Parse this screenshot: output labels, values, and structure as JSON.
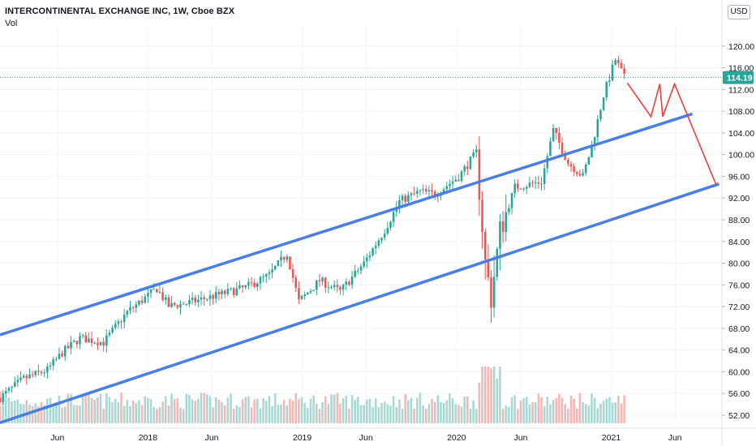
{
  "header": {
    "title": "INTERCONTINENTAL EXCHANGE INC, 1W, Cboe BZX",
    "volume_label": "Vol",
    "currency_button": "USD"
  },
  "colors": {
    "up": "#26a69a",
    "down": "#ef5350",
    "channel": "#4a7ee0",
    "projection": "#ef3b3b",
    "price_label_bg": "#26a69a",
    "grid": "#f0f3fa",
    "axis_text": "#131722"
  },
  "chart_data": {
    "type": "candlestick",
    "title": "INTERCONTINENTAL EXCHANGE INC, 1W, Cboe BZX",
    "interval": "1W",
    "currency": "USD",
    "x_tick_labels": [
      "Jun",
      "2018",
      "Jun",
      "2019",
      "Jun",
      "2020",
      "Jun",
      "2021",
      "Jun"
    ],
    "x_tick_dates": [
      "2017-06-01",
      "2018-01-01",
      "2018-06-01",
      "2019-01-01",
      "2019-06-01",
      "2020-01-01",
      "2020-06-01",
      "2021-01-01",
      "2021-06-01"
    ],
    "x_range": [
      "2017-01-16",
      "2021-09-20"
    ],
    "y_ticks": [
      52,
      56,
      60,
      64,
      68,
      72,
      76,
      80,
      84,
      88,
      92,
      96,
      100,
      104,
      108,
      112,
      116,
      120
    ],
    "y_tick_labels": [
      "52.00",
      "56.00",
      "60.00",
      "64.00",
      "68.00",
      "72.00",
      "76.00",
      "80.00",
      "84.00",
      "88.00",
      "92.00",
      "96.00",
      "100.00",
      "104.00",
      "108.00",
      "112.00",
      "116.00",
      "120.00"
    ],
    "y_range": [
      50.5,
      124
    ],
    "last_price": 114.19,
    "last_price_label": "114.19",
    "price_anchors": [
      {
        "date": "2017-01-16",
        "close": 55.2
      },
      {
        "date": "2017-03-13",
        "close": 58.7
      },
      {
        "date": "2017-05-08",
        "close": 60.3
      },
      {
        "date": "2017-06-12",
        "close": 63.5
      },
      {
        "date": "2017-07-24",
        "close": 66.2
      },
      {
        "date": "2017-09-18",
        "close": 65.4
      },
      {
        "date": "2017-11-13",
        "close": 71.0
      },
      {
        "date": "2018-01-22",
        "close": 75.3
      },
      {
        "date": "2018-02-19",
        "close": 72.1
      },
      {
        "date": "2018-04-02",
        "close": 72.6
      },
      {
        "date": "2018-06-18",
        "close": 74.2
      },
      {
        "date": "2018-08-20",
        "close": 75.5
      },
      {
        "date": "2018-10-15",
        "close": 77.8
      },
      {
        "date": "2018-11-26",
        "close": 81.8
      },
      {
        "date": "2018-12-24",
        "close": 72.9
      },
      {
        "date": "2019-02-11",
        "close": 76.8
      },
      {
        "date": "2019-04-01",
        "close": 74.8
      },
      {
        "date": "2019-05-27",
        "close": 80.0
      },
      {
        "date": "2019-07-15",
        "close": 86.1
      },
      {
        "date": "2019-08-19",
        "close": 91.4
      },
      {
        "date": "2019-10-07",
        "close": 93.2
      },
      {
        "date": "2019-11-11",
        "close": 92.7
      },
      {
        "date": "2020-01-06",
        "close": 95.9
      },
      {
        "date": "2020-02-17",
        "close": 100.4
      },
      {
        "date": "2020-03-09",
        "close": 80.0
      },
      {
        "date": "2020-03-23",
        "close": 73.5
      },
      {
        "date": "2020-04-13",
        "close": 86.0
      },
      {
        "date": "2020-05-18",
        "close": 94.0
      },
      {
        "date": "2020-07-20",
        "close": 95.0
      },
      {
        "date": "2020-08-17",
        "close": 104.5
      },
      {
        "date": "2020-09-21",
        "close": 98.5
      },
      {
        "date": "2020-10-26",
        "close": 96.0
      },
      {
        "date": "2020-11-16",
        "close": 101.5
      },
      {
        "date": "2020-12-14",
        "close": 111.0
      },
      {
        "date": "2021-01-11",
        "close": 117.5
      },
      {
        "date": "2021-02-01",
        "close": 114.19
      }
    ],
    "volume_axis_max": 24,
    "annotations": {
      "channel_upper": [
        {
          "date": "2017-01-16",
          "price": 66.8
        },
        {
          "date": "2021-07-12",
          "price": 107.5
        }
      ],
      "channel_lower": [
        {
          "date": "2017-01-16",
          "price": 50.6
        },
        {
          "date": "2021-09-13",
          "price": 94.6
        }
      ],
      "projection_path": [
        {
          "date": "2021-02-08",
          "price": 113.2
        },
        {
          "date": "2021-04-05",
          "price": 107.0
        },
        {
          "date": "2021-04-26",
          "price": 113.0
        },
        {
          "date": "2021-05-03",
          "price": 107.0
        },
        {
          "date": "2021-05-31",
          "price": 113.0
        },
        {
          "date": "2021-09-06",
          "price": 94.5
        }
      ]
    }
  }
}
